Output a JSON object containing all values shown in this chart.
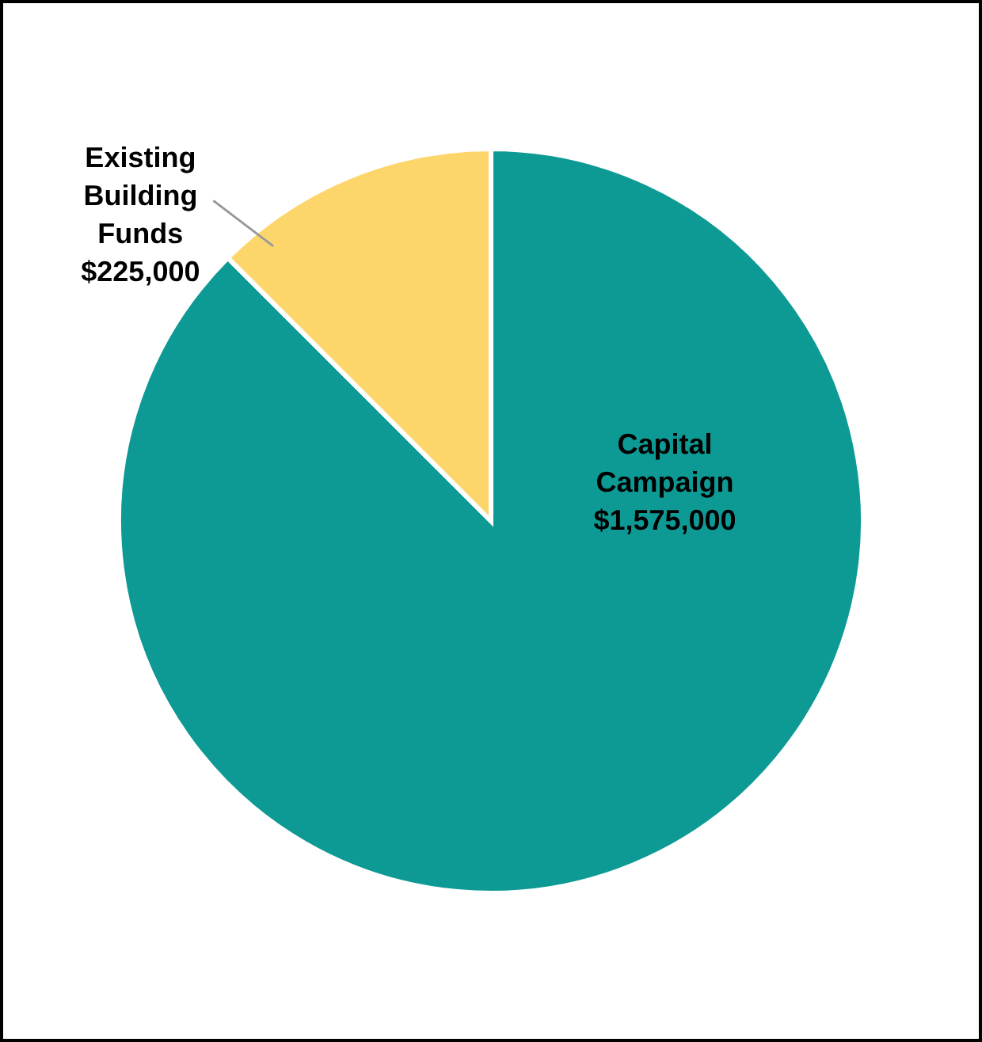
{
  "chart_data": {
    "type": "pie",
    "categories": [
      "Capital Campaign",
      "Existing Building Funds"
    ],
    "values": [
      1575000,
      225000
    ],
    "colors": [
      "#0e9a94",
      "#fdd66b"
    ],
    "value_labels": [
      "$1,575,000",
      "$225,000"
    ]
  }
}
